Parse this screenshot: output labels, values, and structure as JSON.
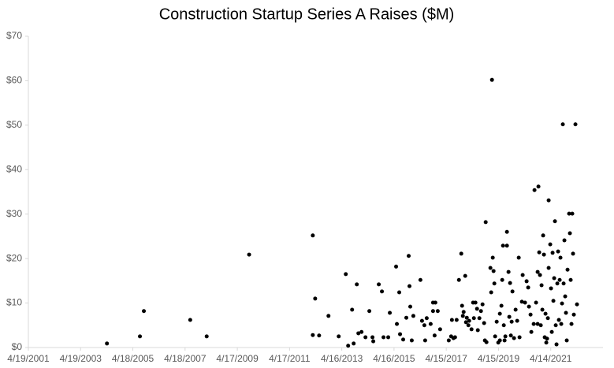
{
  "chart_data": {
    "type": "scatter",
    "title": "Construction Startup Series A Raises ($M)",
    "color": "#000000",
    "grid": false,
    "xlim": [
      37000,
      45030
    ],
    "ylim": [
      0,
      70
    ],
    "xticks": [
      {
        "value": 37000,
        "label": "4/19/2001"
      },
      {
        "value": 37730,
        "label": "4/19/2003"
      },
      {
        "value": 38460,
        "label": "4/18/2005"
      },
      {
        "value": 39190,
        "label": "4/18/2007"
      },
      {
        "value": 39920,
        "label": "4/17/2009"
      },
      {
        "value": 40650,
        "label": "4/17/2011"
      },
      {
        "value": 41380,
        "label": "4/16/2013"
      },
      {
        "value": 42110,
        "label": "4/16/2015"
      },
      {
        "value": 42840,
        "label": "4/15/2017"
      },
      {
        "value": 43570,
        "label": "4/15/2019"
      },
      {
        "value": 44300,
        "label": "4/14/2021"
      }
    ],
    "yticks": [
      {
        "value": 0,
        "label": "$0"
      },
      {
        "value": 10,
        "label": "$10"
      },
      {
        "value": 20,
        "label": "$20"
      },
      {
        "value": 30,
        "label": "$30"
      },
      {
        "value": 40,
        "label": "$40"
      },
      {
        "value": 50,
        "label": "$50"
      },
      {
        "value": 60,
        "label": "$60"
      },
      {
        "value": 70,
        "label": "$70"
      }
    ],
    "x": [
      38098,
      38559,
      38614,
      39262,
      39492,
      40085,
      40975,
      41008,
      40975,
      41063,
      41194,
      41337,
      41436,
      41469,
      41524,
      41546,
      41590,
      41612,
      41656,
      41711,
      41765,
      41809,
      41820,
      41897,
      41941,
      41963,
      42029,
      42051,
      42139,
      42150,
      42183,
      42194,
      42238,
      42282,
      42315,
      42326,
      42337,
      42358,
      42380,
      42479,
      42501,
      42534,
      42545,
      42567,
      42622,
      42655,
      42688,
      42655,
      42677,
      42721,
      42754,
      42875,
      42908,
      42919,
      42941,
      42963,
      42985,
      43017,
      43050,
      43061,
      43072,
      43083,
      43105,
      43116,
      43127,
      43149,
      43160,
      43193,
      43215,
      43226,
      43248,
      43270,
      43281,
      43303,
      43325,
      43347,
      43369,
      43380,
      43402,
      43391,
      43457,
      43468,
      43479,
      43490,
      43501,
      43512,
      43523,
      43545,
      43567,
      43589,
      43589,
      43611,
      43622,
      43633,
      43644,
      43655,
      43666,
      43688,
      43688,
      43710,
      43721,
      43732,
      43743,
      43754,
      43765,
      43787,
      43809,
      43831,
      43853,
      43864,
      43897,
      43908,
      43941,
      43963,
      43985,
      43996,
      44018,
      44029,
      44062,
      44073,
      44095,
      44117,
      44117,
      44128,
      44139,
      44150,
      44161,
      44172,
      44183,
      44194,
      44205,
      44216,
      44227,
      44238,
      44249,
      44260,
      44271,
      44271,
      44293,
      44304,
      44315,
      44326,
      44337,
      44348,
      44359,
      44370,
      44381,
      44392,
      44403,
      44414,
      44425,
      44436,
      44447,
      44458,
      44469,
      44480,
      44491,
      44502,
      44513,
      44524,
      44535,
      44557,
      44568,
      44579,
      44590,
      44601,
      44612,
      44623,
      44645,
      44667
    ],
    "values": [
      0.9,
      2.5,
      8.2,
      6.2,
      2.5,
      20.9,
      25.2,
      11,
      2.8,
      2.7,
      7.1,
      2.5,
      16.5,
      0.4,
      8.5,
      0.9,
      14.2,
      3.2,
      3.5,
      2.3,
      8.2,
      2.3,
      1.4,
      14.2,
      12.6,
      2.3,
      2.3,
      7.8,
      18.2,
      5.3,
      12.4,
      3,
      1.8,
      6.7,
      20.6,
      13.8,
      9.2,
      1.6,
      7.1,
      15.2,
      6,
      5,
      1.6,
      6.6,
      5.3,
      10.1,
      10.1,
      8.2,
      2.7,
      8.2,
      4.1,
      1.6,
      2.5,
      6.2,
      2.1,
      2.3,
      6.2,
      15.2,
      21.1,
      9.4,
      7.1,
      8,
      16.1,
      5.7,
      6.7,
      5,
      6,
      4.1,
      10.1,
      6.6,
      10.1,
      8.7,
      3.9,
      6.6,
      8.2,
      9.7,
      5.5,
      1.6,
      1.2,
      28.2,
      17.9,
      12.4,
      60.2,
      20.2,
      17.2,
      14.4,
      2.5,
      5.8,
      1.1,
      1.6,
      7.6,
      9.4,
      15.2,
      22.9,
      5,
      1.6,
      2.5,
      26,
      22.9,
      17,
      6.9,
      14.5,
      2.7,
      5.8,
      12.6,
      2.1,
      8.5,
      6,
      20.2,
      2.3,
      10.3,
      16.3,
      10.1,
      14.9,
      13.5,
      9.2,
      7.4,
      3.5,
      5.3,
      35.4,
      10.1,
      17,
      5.3,
      36.2,
      21.4,
      16.3,
      5,
      14,
      8.5,
      25.2,
      20.9,
      2.3,
      7.6,
      1.1,
      2,
      6.6,
      17.9,
      33.1,
      23.2,
      13.3,
      3.5,
      21.3,
      10.5,
      15.6,
      28.4,
      5,
      0.7,
      14.4,
      21.6,
      6.2,
      15.2,
      20.2,
      5.3,
      9.9,
      50.2,
      14.4,
      24.1,
      11.5,
      7.8,
      1.6,
      17.5,
      30.1,
      25.7,
      15.2,
      5.3,
      30.1,
      21.1,
      7.4,
      50.2,
      9.7
    ]
  }
}
